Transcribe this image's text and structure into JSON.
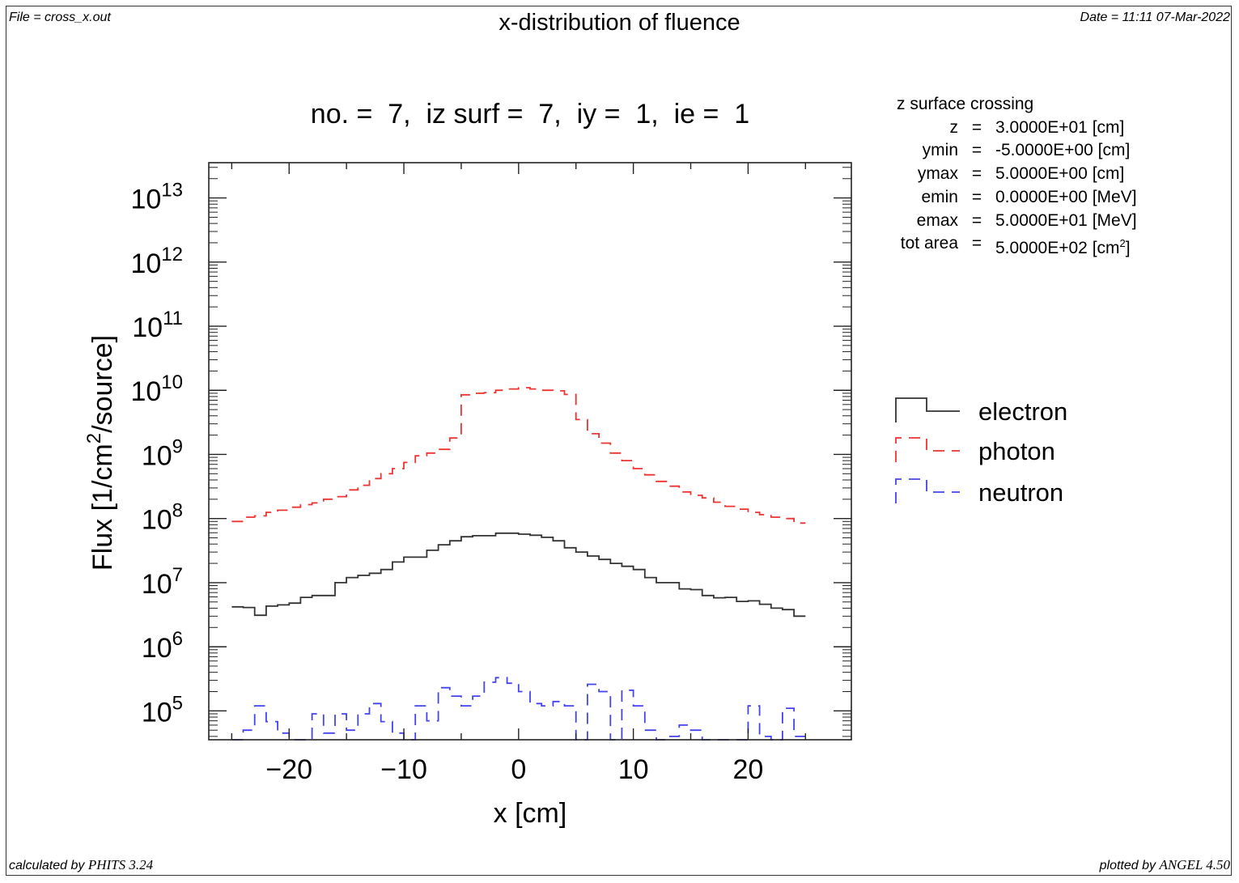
{
  "header": {
    "file": "File = cross_x.out",
    "title": "x-distribution of fluence",
    "date": "Date = 11:11 07-Mar-2022"
  },
  "footer": {
    "calculated_prefix": "calculated by ",
    "calculated_code": "PHITS 3.24",
    "plotted_prefix": "plotted by ",
    "plotted_code": "ANGEL 4.50"
  },
  "subtitle": "no. =  7,  iz surf =  7,  iy =  1,  ie =  1",
  "info": {
    "title": "z surface crossing",
    "rows": [
      {
        "key": "z",
        "eq": "=",
        "value": "3.0000E+01 [cm]"
      },
      {
        "key": "ymin",
        "eq": "=",
        "value": "-5.0000E+00 [cm]"
      },
      {
        "key": "ymax",
        "eq": "=",
        "value": "5.0000E+00 [cm]"
      },
      {
        "key": "emin",
        "eq": "=",
        "value": "0.0000E+00 [MeV]"
      },
      {
        "key": "emax",
        "eq": "=",
        "value": "5.0000E+01 [MeV]"
      },
      {
        "key": "tot area",
        "eq": "=",
        "value": "5.0000E+02 [cm",
        "sup": "2",
        "suffix": "]"
      }
    ]
  },
  "chart_data": {
    "type": "line",
    "style": "histogram-step",
    "title": "x-distribution of fluence",
    "xlabel": "x [cm]",
    "ylabel_parts": [
      "Flux  [1/cm",
      "2",
      "/source]"
    ],
    "xlim": [
      -27,
      29
    ],
    "ylim_log10": [
      4.55,
      13.55
    ],
    "y_scale": "log",
    "x_ticks": [
      -20,
      -10,
      0,
      10,
      20
    ],
    "x_tick_labels": [
      "−20",
      "−10",
      "0",
      "10",
      "20"
    ],
    "y_ticks": [
      {
        "base": "10",
        "exp": "13",
        "value": 10000000000000.0
      },
      {
        "base": "10",
        "exp": "12",
        "value": 1000000000000.0
      },
      {
        "base": "10",
        "exp": "11",
        "value": 100000000000.0
      },
      {
        "base": "10",
        "exp": "10",
        "value": 10000000000.0
      },
      {
        "base": "10",
        "exp": "9",
        "value": 1000000000.0
      },
      {
        "base": "10",
        "exp": "8",
        "value": 100000000.0
      },
      {
        "base": "10",
        "exp": "7",
        "value": 10000000.0
      },
      {
        "base": "10",
        "exp": "6",
        "value": 1000000.0
      },
      {
        "base": "10",
        "exp": "5",
        "value": 100000.0
      }
    ],
    "bin_edges": [
      -25,
      -24,
      -23,
      -22,
      -21,
      -20,
      -19,
      -18,
      -17,
      -16,
      -15,
      -14,
      -13,
      -12,
      -11,
      -10,
      -9,
      -8,
      -7,
      -6,
      -5,
      -4,
      -3,
      -2,
      -1,
      0,
      1,
      2,
      3,
      4,
      5,
      6,
      7,
      8,
      9,
      10,
      11,
      12,
      13,
      14,
      15,
      16,
      17,
      18,
      19,
      20,
      21,
      22,
      23,
      24,
      25
    ],
    "legend_position": "right",
    "series": [
      {
        "name": "electron",
        "color": "#333333",
        "dash": "",
        "values": [
          4200000.0,
          4100000.0,
          3100000.0,
          4300000.0,
          4500000.0,
          4800000.0,
          5900000.0,
          6300000.0,
          6300000.0,
          10000000.0,
          12000000.0,
          13000000.0,
          14000000.0,
          16000000.0,
          21000000.0,
          25000000.0,
          25000000.0,
          32000000.0,
          39000000.0,
          45000000.0,
          52000000.0,
          54000000.0,
          54000000.0,
          59000000.0,
          59000000.0,
          57000000.0,
          55000000.0,
          51000000.0,
          45000000.0,
          35000000.0,
          30000000.0,
          26000000.0,
          23000000.0,
          20000000.0,
          18000000.0,
          16000000.0,
          12000000.0,
          10000000.0,
          10000000.0,
          8000000.0,
          7800000.0,
          6300000.0,
          5800000.0,
          5900000.0,
          5100000.0,
          5200000.0,
          4600000.0,
          4000000.0,
          3800000.0,
          3000000.0
        ]
      },
      {
        "name": "photon",
        "color": "#ee3333",
        "dash": "14 9",
        "values": [
          90000000.0,
          105000000.0,
          110000000.0,
          125000000.0,
          135000000.0,
          150000000.0,
          165000000.0,
          175000000.0,
          200000000.0,
          220000000.0,
          280000000.0,
          330000000.0,
          420000000.0,
          500000000.0,
          600000000.0,
          750000000.0,
          950000000.0,
          1050000000.0,
          1200000000.0,
          1800000000.0,
          8500000000.0,
          9000000000.0,
          9200000000.0,
          10000000000.0,
          10500000000.0,
          11000000000.0,
          10500000000.0,
          10000000000.0,
          9800000000.0,
          8600000000.0,
          3500000000.0,
          2100000000.0,
          1500000000.0,
          1050000000.0,
          800000000.0,
          600000000.0,
          480000000.0,
          380000000.0,
          320000000.0,
          260000000.0,
          230000000.0,
          210000000.0,
          180000000.0,
          155000000.0,
          140000000.0,
          125000000.0,
          115000000.0,
          105000000.0,
          100000000.0,
          85000000.0
        ]
      },
      {
        "name": "neutron",
        "color": "#4444ee",
        "dash": "14 9",
        "values": [
          null,
          50000.0,
          120000.0,
          68000.0,
          45000.0,
          null,
          null,
          90000.0,
          45000.0,
          90000.0,
          50000.0,
          90000.0,
          130000.0,
          68000.0,
          45000.0,
          null,
          120000.0,
          70000.0,
          230000.0,
          170000.0,
          120000.0,
          170000.0,
          280000.0,
          330000.0,
          270000.0,
          200000.0,
          130000.0,
          120000.0,
          140000.0,
          120000.0,
          30000.0,
          260000.0,
          200000.0,
          30000.0,
          210000.0,
          120000.0,
          50000.0,
          30000.0,
          40000.0,
          60000.0,
          50000.0,
          null,
          null,
          null,
          null,
          120000.0,
          40000.0,
          null,
          110000.0,
          40000.0
        ]
      }
    ]
  }
}
